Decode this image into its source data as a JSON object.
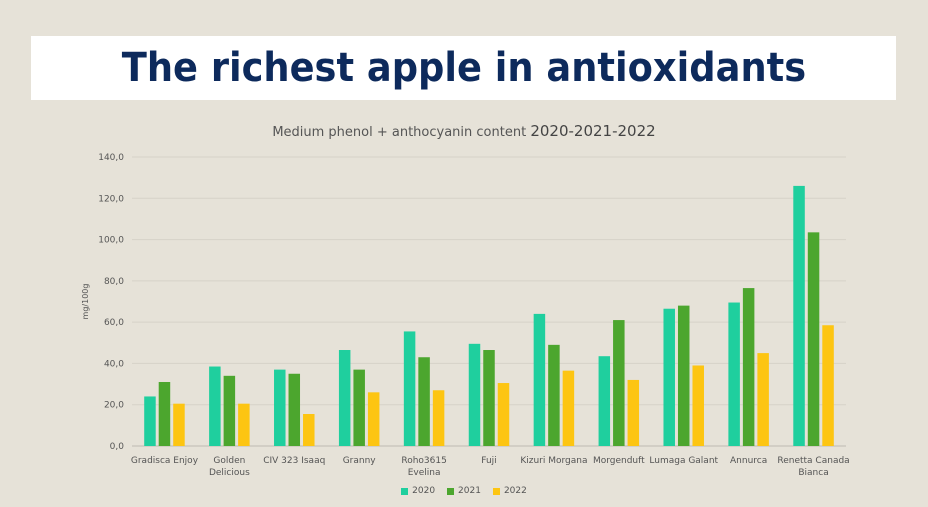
{
  "header": {
    "title": "The richest apple in antioxidants"
  },
  "chart_data": {
    "type": "bar",
    "title": "Medium phenol + anthocyanin content",
    "title_years": "2020-2021-2022",
    "ylabel": "mg/100g",
    "xlabel": "",
    "ylim": [
      0,
      140
    ],
    "yticks": [
      "0,0",
      "20,0",
      "40,0",
      "60,0",
      "80,0",
      "100,0",
      "120,0",
      "140,0"
    ],
    "grid": true,
    "legend_position": "bottom",
    "categories": [
      [
        "Gradisca Enjoy"
      ],
      [
        "Golden",
        "Delicious"
      ],
      [
        "CIV 323 Isaaq"
      ],
      [
        "Granny"
      ],
      [
        "Roho3615",
        "Evelina"
      ],
      [
        "Fuji"
      ],
      [
        "Kizuri Morgana"
      ],
      [
        "Morgenduft"
      ],
      [
        "Lumaga Galant"
      ],
      [
        "Annurca"
      ],
      [
        "Renetta Canada",
        "Bianca"
      ]
    ],
    "series": [
      {
        "name": "2020",
        "color": "#1fcf9e",
        "values": [
          24,
          38.5,
          37,
          46.5,
          55.5,
          49.5,
          64,
          43.5,
          66.5,
          69.5,
          126
        ]
      },
      {
        "name": "2021",
        "color": "#4ca62e",
        "values": [
          31,
          34,
          35,
          37,
          43,
          46.5,
          49,
          61,
          68,
          76.5,
          103.5
        ]
      },
      {
        "name": "2022",
        "color": "#fdc512",
        "values": [
          20.5,
          20.5,
          15.5,
          26,
          27,
          30.5,
          36.5,
          32,
          39,
          45,
          58.5
        ]
      }
    ]
  }
}
